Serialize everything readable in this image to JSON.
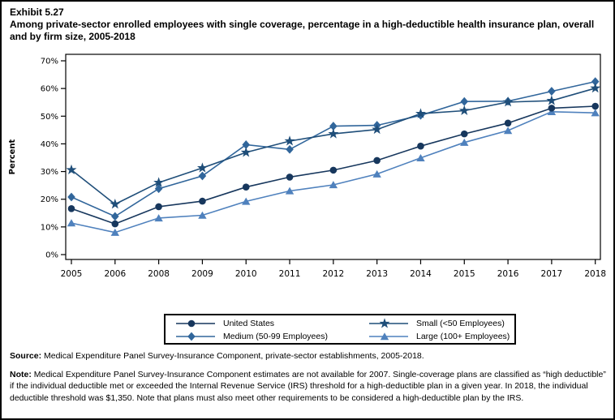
{
  "header": {
    "exhibit_number": "Exhibit 5.27",
    "title": "Among private-sector enrolled employees with single coverage, percentage in a high-deductible health insurance plan, overall and by firm size, 2005-2018"
  },
  "chart_data": {
    "type": "line",
    "title": "Among private-sector enrolled employees with single coverage, percentage in a high-deductible health insurance plan, overall and by firm size, 2005-2018",
    "xlabel": "",
    "ylabel": "Percent",
    "ylim": [
      0,
      70
    ],
    "yticks": [
      0,
      10,
      20,
      30,
      40,
      50,
      60,
      70
    ],
    "ytick_suffix": "%",
    "grid": false,
    "legend_position": "bottom",
    "x": [
      "2005",
      "2006",
      "2008",
      "2009",
      "2010",
      "2011",
      "2012",
      "2013",
      "2014",
      "2015",
      "2016",
      "2017",
      "2018"
    ],
    "series": [
      {
        "name": "United States",
        "marker": "circle",
        "color": "#17375D",
        "values": [
          16.6,
          11.1,
          17.3,
          19.3,
          24.4,
          28.0,
          30.5,
          34.0,
          39.2,
          43.6,
          47.5,
          52.9,
          53.6
        ]
      },
      {
        "name": "Small (<50 Employees)",
        "marker": "star",
        "color": "#1F4E79",
        "values": [
          30.6,
          18.2,
          26.0,
          31.3,
          36.9,
          41.0,
          43.6,
          45.2,
          50.9,
          52.0,
          55.1,
          55.6,
          60.1
        ]
      },
      {
        "name": "Medium (50-99 Employees)",
        "marker": "diamond",
        "color": "#31669B",
        "values": [
          20.8,
          13.8,
          23.8,
          28.4,
          39.7,
          38.0,
          46.4,
          46.7,
          50.3,
          55.3,
          55.4,
          59.0,
          62.5
        ]
      },
      {
        "name": "Large (100+ Employees)",
        "marker": "triangle",
        "color": "#4F81BD",
        "values": [
          11.4,
          8.0,
          13.2,
          14.2,
          19.2,
          23.0,
          25.2,
          29.1,
          34.9,
          40.5,
          44.8,
          51.6,
          51.2
        ]
      }
    ]
  },
  "footer": {
    "source_label": "Source:",
    "source_text": " Medical Expenditure Panel Survey-Insurance Component, private-sector establishments, 2005-2018.",
    "note_label": "Note:",
    "note_text": " Medical Expenditure Panel Survey-Insurance Component estimates are not available for 2007. Single-coverage plans are classified as “high deductible” if the individual deductible met or exceeded the Internal Revenue Service (IRS) threshold for a high-deductible plan in a given year. In 2018, the individual deductible threshold was $1,350. Note that plans must also meet other requirements to be considered a high-deductible plan by the IRS."
  }
}
